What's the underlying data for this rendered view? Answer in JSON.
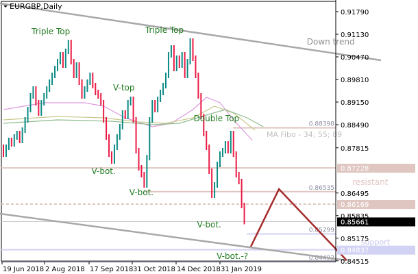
{
  "header": {
    "symbol_title": "EURGBP,Daily"
  },
  "colors": {
    "up_bar": "#0b8a84",
    "down_bar": "#ea1a44",
    "level": "#dfc6c0",
    "support": "#d2d2f4",
    "trend": "#a8a8a8",
    "forecast": "#a52a2a",
    "ma34": "#dd99dd",
    "ma55": "#c8c88a",
    "ma89": "#8fbc8f",
    "annotation": "#1f7a1f"
  },
  "chart_data": {
    "type": "ohlc-bar",
    "title": "EURGBP,Daily",
    "ylim": [
      0.8451,
      0.9213
    ],
    "grid": false,
    "price_ticks": [
      "0.91790",
      "0.91130",
      "0.90470",
      "0.89810",
      "0.89150",
      "0.88490",
      "0.87815",
      "0.86495",
      "0.85835",
      "0.85175",
      "0.84515"
    ],
    "x_ticks": [
      "19 Jun 2018",
      "2 Aug 2018",
      "17 Sep 2018",
      "31 Oct 2018",
      "14 Dec 2018",
      "31 Jan 2019"
    ],
    "closes": [
      0.8763,
      0.8783,
      0.8803,
      0.8793,
      0.8813,
      0.8823,
      0.8803,
      0.8833,
      0.8863,
      0.8893,
      0.8933,
      0.8953,
      0.8913,
      0.8883,
      0.8913,
      0.8933,
      0.8953,
      0.8973,
      0.8993,
      0.9013,
      0.9033,
      0.9053,
      0.9023,
      0.9063,
      0.9089,
      0.9033,
      0.8993,
      0.9023,
      0.8973,
      0.8933,
      0.8953,
      0.8973,
      0.8993,
      0.8963,
      0.8943,
      0.8933,
      0.8913,
      0.8863,
      0.8813,
      0.8763,
      0.8743,
      0.8783,
      0.8813,
      0.8843,
      0.8883,
      0.8873,
      0.8913,
      0.8923,
      0.8863,
      0.8773,
      0.8723,
      0.8703,
      0.8673,
      0.8753,
      0.8863,
      0.8913,
      0.8893,
      0.8923,
      0.8943,
      0.8963,
      0.8993,
      0.9053,
      0.9073,
      0.9013,
      0.9043,
      0.9023,
      0.9053,
      0.8993,
      0.9033,
      0.9093,
      0.9043,
      0.8993,
      0.8933,
      0.8873,
      0.8823,
      0.8783,
      0.8713,
      0.8643,
      0.8673,
      0.8733,
      0.8763,
      0.8773,
      0.8793,
      0.8773,
      0.8823,
      0.8763,
      0.8703,
      0.8683,
      0.8613,
      0.85661
    ],
    "moving_averages": [
      {
        "name": "MA 34",
        "color_key": "ma34",
        "points": [
          [
            0,
            0.8893
          ],
          [
            15,
            0.8913
          ],
          [
            30,
            0.8913
          ],
          [
            37,
            0.8903
          ],
          [
            45,
            0.8869
          ],
          [
            55,
            0.8843
          ],
          [
            62,
            0.8853
          ],
          [
            70,
            0.8893
          ],
          [
            75,
            0.8929
          ],
          [
            80,
            0.8913
          ],
          [
            85,
            0.8863
          ],
          [
            92,
            0.8803
          ]
        ]
      },
      {
        "name": "MA 55",
        "color_key": "ma55",
        "points": [
          [
            0,
            0.8863
          ],
          [
            20,
            0.8873
          ],
          [
            37,
            0.8869
          ],
          [
            50,
            0.8857
          ],
          [
            60,
            0.8853
          ],
          [
            70,
            0.8869
          ],
          [
            78,
            0.8903
          ],
          [
            85,
            0.8883
          ],
          [
            93,
            0.8833
          ]
        ]
      },
      {
        "name": "MA 89",
        "color_key": "ma89",
        "points": [
          [
            0,
            0.8853
          ],
          [
            20,
            0.8863
          ],
          [
            40,
            0.8859
          ],
          [
            55,
            0.8849
          ],
          [
            65,
            0.8853
          ],
          [
            75,
            0.8877
          ],
          [
            82,
            0.8893
          ],
          [
            90,
            0.8869
          ],
          [
            96,
            0.8843
          ]
        ]
      }
    ],
    "trendlines": [
      {
        "name": "down-trend",
        "from": [
          -1.3,
          0.9203
        ],
        "to": [
          139.5,
          0.9037
        ]
      },
      {
        "name": "channel-bottom",
        "from": [
          -1.3,
          0.8589
        ],
        "to": [
          126.6,
          0.8453
        ]
      }
    ],
    "forecast_path": [
      [
        91.4,
        0.8493
      ],
      [
        101.8,
        0.8661
      ],
      [
        126.8,
        0.8453
      ]
    ],
    "levels": [
      {
        "price": 0.88398,
        "label": "0.88398",
        "from": 84.8,
        "kind": "level"
      },
      {
        "price": 0.87228,
        "label": "",
        "from": -2,
        "kind": "level",
        "axis_box": "0.87228"
      },
      {
        "price": 0.86535,
        "label": "0.86535",
        "from": 52,
        "kind": "level"
      },
      {
        "price": 0.86169,
        "label": "",
        "from": -2,
        "kind": "level-dashed",
        "axis_box": "0.86169"
      },
      {
        "price": 0.85661,
        "label": "",
        "from": -2,
        "kind": "current",
        "axis_box": "0.85661"
      },
      {
        "price": 0.85299,
        "label": "0.85299",
        "from": 89.9,
        "kind": "support"
      },
      {
        "price": 0.84837,
        "label": "",
        "from": -2,
        "kind": "support",
        "axis_box": "0.84837"
      },
      {
        "price": 0.84492,
        "label": "0.84492",
        "from": -2,
        "kind": "support"
      }
    ],
    "annotations": [
      {
        "text": "Triple Top",
        "bar": 17.5,
        "price": 0.9113,
        "style": "annotation"
      },
      {
        "text": "Triple Top",
        "bar": 59.5,
        "price": 0.9117,
        "style": "annotation"
      },
      {
        "text": "V-top",
        "bar": 44.5,
        "price": 0.8949,
        "style": "annotation"
      },
      {
        "text": "V-bot.",
        "bar": 37,
        "price": 0.8705,
        "style": "annotation"
      },
      {
        "text": "V-bot.",
        "bar": 51,
        "price": 0.8643,
        "style": "annotation"
      },
      {
        "text": "V-bot.",
        "bar": 76,
        "price": 0.8549,
        "style": "annotation"
      },
      {
        "text": "Double Top",
        "bar": 78.7,
        "price": 0.8859,
        "style": "annotation"
      },
      {
        "text": "V-bot.-?",
        "bar": 84.6,
        "price": 0.8457,
        "style": "annotation"
      },
      {
        "text": "Down trend",
        "bar": 112.1,
        "price": 0.9083,
        "style": "trend"
      },
      {
        "text": "MA Fibo - 34; 55; 89",
        "bar": 97.2,
        "price": 0.8813,
        "style": "fibo"
      },
      {
        "text": "resistant",
        "bar": 128.9,
        "price": 0.8673,
        "style": "resist"
      },
      {
        "text": "support",
        "bar": 132.1,
        "price": 0.8499,
        "style": "support"
      }
    ]
  }
}
